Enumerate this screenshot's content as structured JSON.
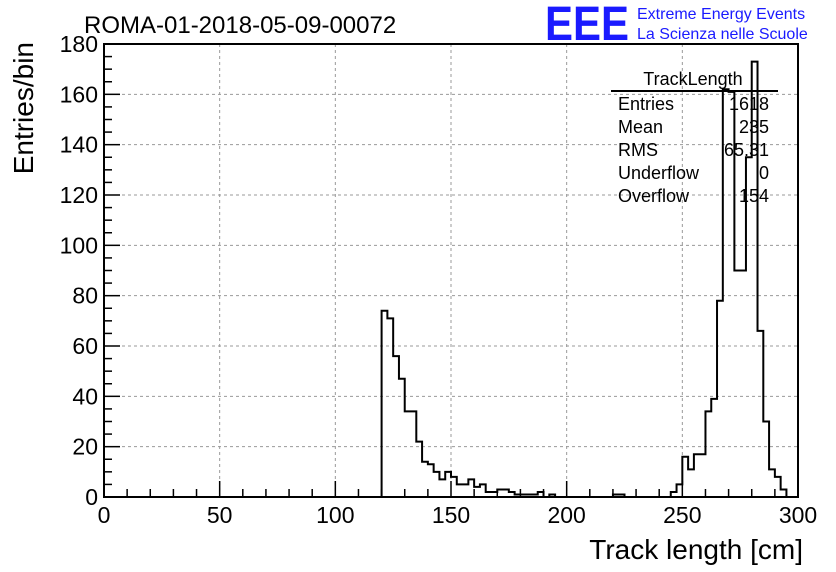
{
  "header": {
    "run_title": "ROMA-01-2018-05-09-00072",
    "logo_text": "EEE",
    "logo_line1": "Extreme Energy Events",
    "logo_line2": "La Scienza nelle Scuole",
    "logo_color": "#1a1aff"
  },
  "stats_box": {
    "title": "TrackLength",
    "rows": [
      {
        "label": "Entries",
        "value": "1618"
      },
      {
        "label": "Mean",
        "value": "235"
      },
      {
        "label": "RMS",
        "value": "65.31"
      },
      {
        "label": "Underflow",
        "value": "0"
      },
      {
        "label": "Overflow",
        "value": "154"
      }
    ]
  },
  "chart_data": {
    "type": "bar",
    "style": "step-histogram",
    "xlabel": "Track length [cm]",
    "ylabel": "Entries/bin",
    "xlim": [
      0,
      300
    ],
    "ylim": [
      0,
      180
    ],
    "bin_width": 2.5,
    "grid": true,
    "x_ticks": [
      0,
      50,
      100,
      150,
      200,
      250,
      300
    ],
    "y_ticks": [
      0,
      20,
      40,
      60,
      80,
      100,
      120,
      140,
      160,
      180
    ],
    "bins": [
      {
        "x": 120,
        "y": 74
      },
      {
        "x": 122.5,
        "y": 71
      },
      {
        "x": 125,
        "y": 56
      },
      {
        "x": 127.5,
        "y": 47
      },
      {
        "x": 130,
        "y": 34
      },
      {
        "x": 132.5,
        "y": 34
      },
      {
        "x": 135,
        "y": 22
      },
      {
        "x": 137.5,
        "y": 14
      },
      {
        "x": 140,
        "y": 13
      },
      {
        "x": 142.5,
        "y": 10
      },
      {
        "x": 145,
        "y": 7
      },
      {
        "x": 147.5,
        "y": 10
      },
      {
        "x": 150,
        "y": 8
      },
      {
        "x": 152.5,
        "y": 5
      },
      {
        "x": 155,
        "y": 5
      },
      {
        "x": 157.5,
        "y": 7
      },
      {
        "x": 160,
        "y": 4
      },
      {
        "x": 162.5,
        "y": 5
      },
      {
        "x": 165,
        "y": 2
      },
      {
        "x": 167.5,
        "y": 2
      },
      {
        "x": 170,
        "y": 3
      },
      {
        "x": 172.5,
        "y": 3
      },
      {
        "x": 175,
        "y": 2
      },
      {
        "x": 177.5,
        "y": 1
      },
      {
        "x": 180,
        "y": 1
      },
      {
        "x": 182.5,
        "y": 1
      },
      {
        "x": 185,
        "y": 1
      },
      {
        "x": 187.5,
        "y": 2
      },
      {
        "x": 190,
        "y": 0
      },
      {
        "x": 192.5,
        "y": 1
      },
      {
        "x": 195,
        "y": 0
      },
      {
        "x": 197.5,
        "y": 0
      },
      {
        "x": 200,
        "y": 0
      },
      {
        "x": 202.5,
        "y": 0
      },
      {
        "x": 205,
        "y": 0
      },
      {
        "x": 207.5,
        "y": 0
      },
      {
        "x": 210,
        "y": 0
      },
      {
        "x": 212.5,
        "y": 0
      },
      {
        "x": 215,
        "y": 0
      },
      {
        "x": 217.5,
        "y": 0
      },
      {
        "x": 220,
        "y": 1
      },
      {
        "x": 222.5,
        "y": 1
      },
      {
        "x": 225,
        "y": 0
      },
      {
        "x": 227.5,
        "y": 0
      },
      {
        "x": 230,
        "y": 0
      },
      {
        "x": 232.5,
        "y": 0
      },
      {
        "x": 235,
        "y": 0
      },
      {
        "x": 237.5,
        "y": 0
      },
      {
        "x": 240,
        "y": 0
      },
      {
        "x": 242.5,
        "y": 0
      },
      {
        "x": 245,
        "y": 2
      },
      {
        "x": 247.5,
        "y": 5
      },
      {
        "x": 250,
        "y": 16
      },
      {
        "x": 252.5,
        "y": 11
      },
      {
        "x": 255,
        "y": 17
      },
      {
        "x": 257.5,
        "y": 17
      },
      {
        "x": 260,
        "y": 34
      },
      {
        "x": 262.5,
        "y": 39
      },
      {
        "x": 265,
        "y": 78
      },
      {
        "x": 267.5,
        "y": 162
      },
      {
        "x": 270,
        "y": 161
      },
      {
        "x": 272.5,
        "y": 90
      },
      {
        "x": 275,
        "y": 90
      },
      {
        "x": 277.5,
        "y": 135
      },
      {
        "x": 280,
        "y": 173
      },
      {
        "x": 282.5,
        "y": 66
      },
      {
        "x": 285,
        "y": 30
      },
      {
        "x": 287.5,
        "y": 11
      },
      {
        "x": 290,
        "y": 8
      },
      {
        "x": 292.5,
        "y": 3
      }
    ]
  }
}
